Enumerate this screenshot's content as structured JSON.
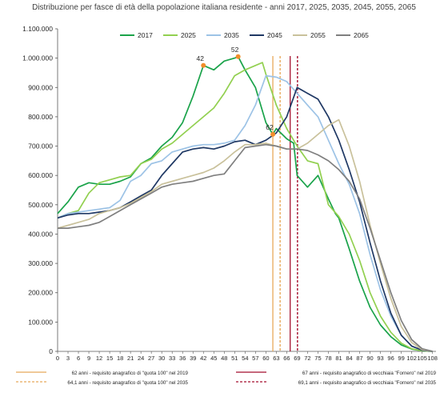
{
  "chart_data": {
    "type": "line",
    "title": "Distribuzione per fasce di età della popolazione italiana residente - anni 2017, 2025, 2035, 2045, 2055, 2065",
    "xlabel": "",
    "ylabel": "",
    "ylim": [
      0,
      1100000
    ],
    "yticks": [
      "0",
      "100.000",
      "200.000",
      "300.000",
      "400.000",
      "500.000",
      "600.000",
      "700.000",
      "800.000",
      "900.000",
      "1.000.000",
      "1.100.000"
    ],
    "x_ticks": [
      0,
      3,
      6,
      9,
      12,
      15,
      18,
      21,
      24,
      27,
      30,
      33,
      36,
      39,
      42,
      45,
      48,
      51,
      54,
      57,
      60,
      63,
      66,
      69,
      72,
      75,
      78,
      81,
      84,
      87,
      90,
      93,
      96,
      99,
      102,
      105,
      108
    ],
    "grid": false,
    "legend_position": "top",
    "series": [
      {
        "name": "2017",
        "color": "#1aa34a",
        "points": [
          [
            0,
            470000
          ],
          [
            3,
            510000
          ],
          [
            6,
            560000
          ],
          [
            9,
            575000
          ],
          [
            12,
            570000
          ],
          [
            15,
            570000
          ],
          [
            18,
            580000
          ],
          [
            21,
            595000
          ],
          [
            24,
            640000
          ],
          [
            27,
            660000
          ],
          [
            30,
            700000
          ],
          [
            33,
            730000
          ],
          [
            36,
            780000
          ],
          [
            39,
            870000
          ],
          [
            42,
            975000
          ],
          [
            45,
            960000
          ],
          [
            48,
            990000
          ],
          [
            51,
            1000000
          ],
          [
            52,
            1005000
          ],
          [
            54,
            960000
          ],
          [
            57,
            900000
          ],
          [
            60,
            780000
          ],
          [
            62,
            740000
          ],
          [
            63,
            760000
          ],
          [
            66,
            725000
          ],
          [
            68,
            710000
          ],
          [
            69,
            600000
          ],
          [
            72,
            560000
          ],
          [
            75,
            600000
          ],
          [
            78,
            520000
          ],
          [
            80,
            470000
          ],
          [
            81,
            455000
          ],
          [
            84,
            350000
          ],
          [
            87,
            240000
          ],
          [
            90,
            150000
          ],
          [
            93,
            90000
          ],
          [
            96,
            50000
          ],
          [
            99,
            22000
          ],
          [
            102,
            8000
          ],
          [
            105,
            2000
          ],
          [
            108,
            0
          ]
        ]
      },
      {
        "name": "2025",
        "color": "#92d050",
        "points": [
          [
            0,
            455000
          ],
          [
            3,
            470000
          ],
          [
            6,
            480000
          ],
          [
            9,
            540000
          ],
          [
            12,
            575000
          ],
          [
            15,
            585000
          ],
          [
            18,
            595000
          ],
          [
            21,
            600000
          ],
          [
            24,
            640000
          ],
          [
            27,
            655000
          ],
          [
            30,
            690000
          ],
          [
            33,
            710000
          ],
          [
            36,
            740000
          ],
          [
            39,
            770000
          ],
          [
            42,
            800000
          ],
          [
            45,
            830000
          ],
          [
            48,
            880000
          ],
          [
            51,
            940000
          ],
          [
            54,
            960000
          ],
          [
            57,
            975000
          ],
          [
            59,
            985000
          ],
          [
            60,
            945000
          ],
          [
            63,
            840000
          ],
          [
            66,
            760000
          ],
          [
            69,
            700000
          ],
          [
            72,
            650000
          ],
          [
            75,
            640000
          ],
          [
            78,
            500000
          ],
          [
            81,
            460000
          ],
          [
            84,
            400000
          ],
          [
            87,
            310000
          ],
          [
            90,
            200000
          ],
          [
            93,
            120000
          ],
          [
            96,
            65000
          ],
          [
            99,
            28000
          ],
          [
            102,
            9000
          ],
          [
            105,
            2000
          ],
          [
            108,
            0
          ]
        ]
      },
      {
        "name": "2035",
        "color": "#9dc3e6",
        "points": [
          [
            0,
            455000
          ],
          [
            3,
            470000
          ],
          [
            6,
            475000
          ],
          [
            9,
            480000
          ],
          [
            12,
            485000
          ],
          [
            15,
            490000
          ],
          [
            18,
            515000
          ],
          [
            21,
            580000
          ],
          [
            24,
            600000
          ],
          [
            27,
            640000
          ],
          [
            30,
            650000
          ],
          [
            33,
            680000
          ],
          [
            36,
            690000
          ],
          [
            39,
            700000
          ],
          [
            42,
            705000
          ],
          [
            45,
            705000
          ],
          [
            48,
            710000
          ],
          [
            51,
            720000
          ],
          [
            54,
            770000
          ],
          [
            57,
            840000
          ],
          [
            60,
            940000
          ],
          [
            63,
            935000
          ],
          [
            66,
            920000
          ],
          [
            69,
            880000
          ],
          [
            72,
            840000
          ],
          [
            75,
            800000
          ],
          [
            78,
            720000
          ],
          [
            81,
            640000
          ],
          [
            84,
            570000
          ],
          [
            87,
            470000
          ],
          [
            90,
            330000
          ],
          [
            93,
            210000
          ],
          [
            96,
            120000
          ],
          [
            99,
            55000
          ],
          [
            102,
            18000
          ],
          [
            105,
            4000
          ],
          [
            108,
            0
          ]
        ]
      },
      {
        "name": "2045",
        "color": "#1f3864",
        "points": [
          [
            0,
            455000
          ],
          [
            3,
            465000
          ],
          [
            6,
            470000
          ],
          [
            9,
            470000
          ],
          [
            12,
            475000
          ],
          [
            15,
            480000
          ],
          [
            18,
            490000
          ],
          [
            21,
            510000
          ],
          [
            24,
            530000
          ],
          [
            27,
            550000
          ],
          [
            30,
            600000
          ],
          [
            33,
            640000
          ],
          [
            36,
            680000
          ],
          [
            39,
            690000
          ],
          [
            42,
            695000
          ],
          [
            45,
            690000
          ],
          [
            48,
            700000
          ],
          [
            51,
            715000
          ],
          [
            54,
            720000
          ],
          [
            57,
            705000
          ],
          [
            60,
            720000
          ],
          [
            63,
            745000
          ],
          [
            66,
            800000
          ],
          [
            69,
            900000
          ],
          [
            72,
            880000
          ],
          [
            75,
            860000
          ],
          [
            78,
            800000
          ],
          [
            81,
            720000
          ],
          [
            84,
            620000
          ],
          [
            87,
            510000
          ],
          [
            90,
            370000
          ],
          [
            93,
            240000
          ],
          [
            96,
            130000
          ],
          [
            99,
            55000
          ],
          [
            102,
            18000
          ],
          [
            105,
            4000
          ],
          [
            108,
            0
          ]
        ]
      },
      {
        "name": "2055",
        "color": "#c9c19b",
        "points": [
          [
            0,
            420000
          ],
          [
            3,
            430000
          ],
          [
            6,
            440000
          ],
          [
            9,
            450000
          ],
          [
            12,
            470000
          ],
          [
            15,
            480000
          ],
          [
            18,
            490000
          ],
          [
            21,
            505000
          ],
          [
            24,
            525000
          ],
          [
            27,
            545000
          ],
          [
            30,
            570000
          ],
          [
            33,
            580000
          ],
          [
            36,
            590000
          ],
          [
            39,
            600000
          ],
          [
            42,
            610000
          ],
          [
            45,
            625000
          ],
          [
            48,
            650000
          ],
          [
            51,
            680000
          ],
          [
            54,
            705000
          ],
          [
            57,
            705000
          ],
          [
            60,
            710000
          ],
          [
            63,
            700000
          ],
          [
            66,
            690000
          ],
          [
            69,
            690000
          ],
          [
            72,
            710000
          ],
          [
            75,
            740000
          ],
          [
            78,
            770000
          ],
          [
            81,
            790000
          ],
          [
            84,
            700000
          ],
          [
            87,
            580000
          ],
          [
            90,
            430000
          ],
          [
            93,
            300000
          ],
          [
            96,
            180000
          ],
          [
            99,
            85000
          ],
          [
            102,
            30000
          ],
          [
            105,
            6000
          ],
          [
            108,
            0
          ]
        ]
      },
      {
        "name": "2065",
        "color": "#7f7f7f",
        "points": [
          [
            0,
            420000
          ],
          [
            3,
            420000
          ],
          [
            6,
            425000
          ],
          [
            9,
            430000
          ],
          [
            12,
            440000
          ],
          [
            15,
            460000
          ],
          [
            18,
            480000
          ],
          [
            21,
            500000
          ],
          [
            24,
            520000
          ],
          [
            27,
            540000
          ],
          [
            30,
            560000
          ],
          [
            33,
            570000
          ],
          [
            36,
            575000
          ],
          [
            39,
            580000
          ],
          [
            42,
            590000
          ],
          [
            45,
            600000
          ],
          [
            48,
            605000
          ],
          [
            51,
            650000
          ],
          [
            54,
            695000
          ],
          [
            57,
            700000
          ],
          [
            60,
            705000
          ],
          [
            63,
            700000
          ],
          [
            66,
            690000
          ],
          [
            69,
            690000
          ],
          [
            72,
            685000
          ],
          [
            75,
            670000
          ],
          [
            78,
            650000
          ],
          [
            81,
            620000
          ],
          [
            84,
            580000
          ],
          [
            87,
            520000
          ],
          [
            90,
            420000
          ],
          [
            93,
            310000
          ],
          [
            96,
            200000
          ],
          [
            99,
            105000
          ],
          [
            102,
            40000
          ],
          [
            105,
            9000
          ],
          [
            108,
            0
          ]
        ]
      }
    ],
    "annotations": [
      {
        "label": "42",
        "x": 42,
        "y": 975000,
        "color": "#f28e2b"
      },
      {
        "label": "52",
        "x": 52,
        "y": 1005000,
        "color": "#f28e2b"
      },
      {
        "label": "62",
        "x": 62,
        "y": 740000,
        "color": "#f28e2b"
      }
    ],
    "vlines": [
      {
        "x": 62,
        "color": "#e8a95b",
        "dash": false,
        "label": "62 anni - requisito anagrafico di \"quota 100\" nel 2019"
      },
      {
        "x": 64.1,
        "color": "#e8a95b",
        "dash": true,
        "label": "64,1 anni - requisito anagrafico di \"quota 100\" nel 2035"
      },
      {
        "x": 67,
        "color": "#a50f2d",
        "dash": false,
        "label": "67 anni - requisito anagrafico di vecchiaia \"Fornero\" nel 2019"
      },
      {
        "x": 69.1,
        "color": "#a50f2d",
        "dash": true,
        "label": "69,1 anni - requisito anagrafico di vecchiaia \"Fornero\" nel 2035"
      }
    ]
  }
}
